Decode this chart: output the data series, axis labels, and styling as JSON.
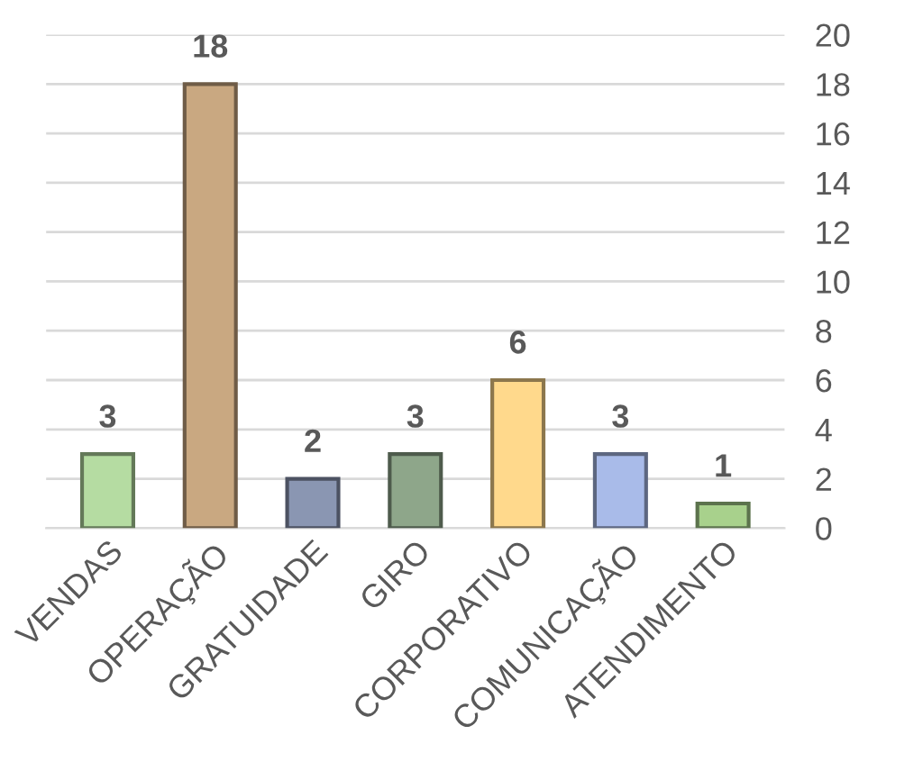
{
  "chart_data": {
    "type": "bar",
    "categories": [
      "VENDAS",
      "OPERAÇÃO",
      "GRATUIDADE",
      "GIRO",
      "CORPORATIVO",
      "COMUNICAÇÃO",
      "ATENDIMENTO"
    ],
    "values": [
      3,
      18,
      2,
      3,
      6,
      3,
      1
    ],
    "colors": [
      "#b5dca2",
      "#c9a881",
      "#8a96b2",
      "#8ea68a",
      "#ffd98c",
      "#a9bbe9",
      "#a8d18c"
    ],
    "ylim": [
      0,
      20
    ],
    "yticks": [
      0,
      2,
      4,
      6,
      8,
      10,
      12,
      14,
      16,
      18,
      20
    ],
    "grid": "y",
    "data_labels": true
  }
}
